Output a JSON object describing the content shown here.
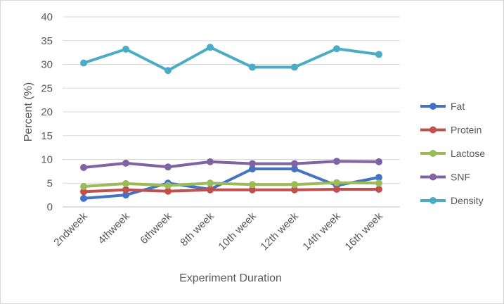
{
  "chart_data": {
    "type": "line",
    "title": "",
    "xlabel": "Experiment Duration",
    "ylabel": "Percent (%)",
    "ylim": [
      0,
      40
    ],
    "yticks": [
      0,
      5,
      10,
      15,
      20,
      25,
      30,
      35,
      40
    ],
    "grid": true,
    "legend_position": "right",
    "categories": [
      "2ndweek",
      "4thweek",
      "6thweek",
      "8th week",
      "10th week",
      "12th week",
      "14th week",
      "16th week"
    ],
    "series": [
      {
        "name": "Fat",
        "color": "#4472c4",
        "values": [
          1.8,
          2.5,
          5.0,
          3.7,
          8.0,
          8.0,
          4.5,
          6.2
        ]
      },
      {
        "name": "Protein",
        "color": "#c0504d",
        "values": [
          3.2,
          3.6,
          3.3,
          3.6,
          3.6,
          3.6,
          3.7,
          3.7
        ]
      },
      {
        "name": "Lactose",
        "color": "#9bbb59",
        "values": [
          4.3,
          4.9,
          4.5,
          5.0,
          4.7,
          4.7,
          5.1,
          5.0
        ]
      },
      {
        "name": "SNF",
        "color": "#8064a2",
        "values": [
          8.3,
          9.2,
          8.4,
          9.5,
          9.1,
          9.1,
          9.6,
          9.5
        ]
      },
      {
        "name": "Density",
        "color": "#4bacc6",
        "values": [
          30.3,
          33.2,
          28.7,
          33.6,
          29.4,
          29.4,
          33.3,
          32.1
        ]
      }
    ]
  }
}
